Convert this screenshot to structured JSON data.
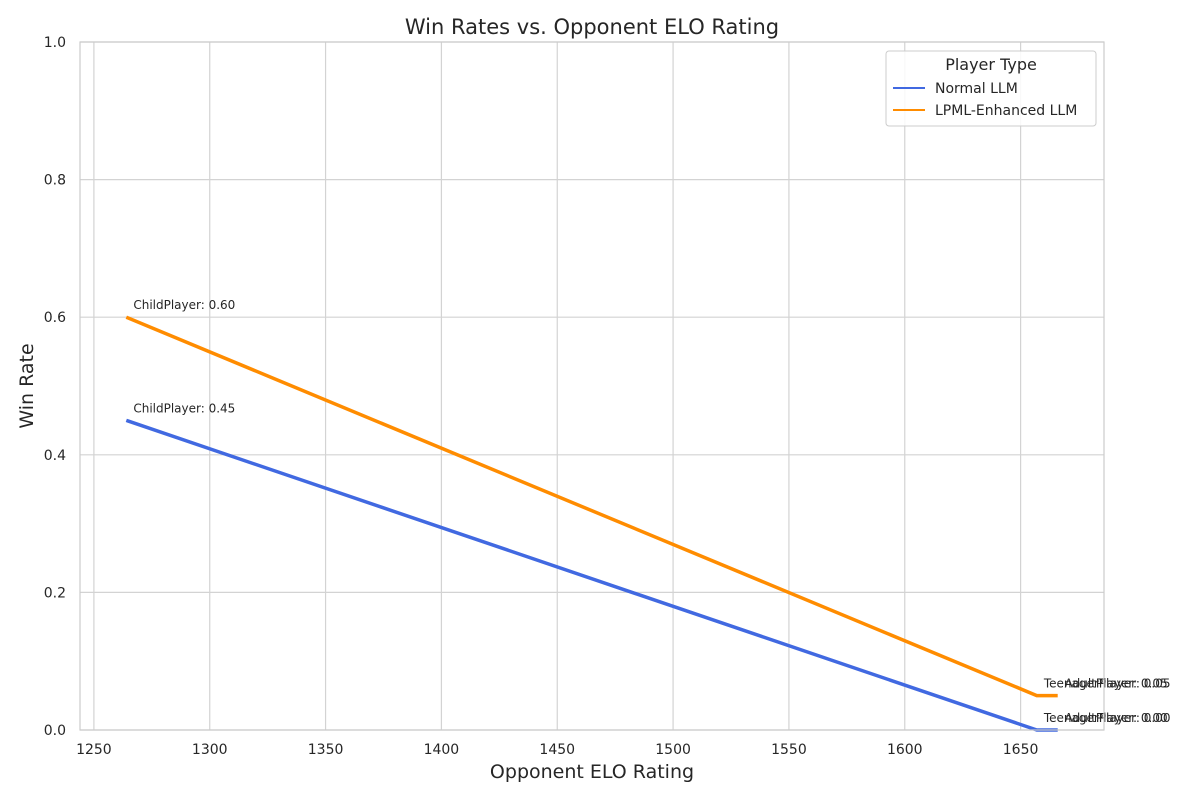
{
  "chart_data": {
    "type": "line",
    "title": "Win Rates vs. Opponent ELO Rating",
    "xlabel": "Opponent ELO Rating",
    "ylabel": "Win Rate",
    "xlim": [
      1244,
      1686
    ],
    "ylim": [
      0,
      1.0
    ],
    "xticks": [
      1250,
      1300,
      1350,
      1400,
      1450,
      1500,
      1550,
      1600,
      1650
    ],
    "yticks": [
      0.0,
      0.2,
      0.4,
      0.6,
      0.8,
      1.0
    ],
    "xtick_labels": [
      "1250",
      "1300",
      "1350",
      "1400",
      "1450",
      "1500",
      "1550",
      "1600",
      "1650"
    ],
    "ytick_labels": [
      "0.0",
      "0.2",
      "0.4",
      "0.6",
      "0.8",
      "1.0"
    ],
    "grid": true,
    "legend": {
      "title": "Player Type",
      "position": "top-right"
    },
    "series": [
      {
        "name": "Normal LLM",
        "color": "#4169e1",
        "x": [
          1264,
          1657,
          1666
        ],
        "y": [
          0.45,
          0.0,
          0.0
        ],
        "labels": [
          "ChildPlayer: 0.45",
          "TeenagerPlayer: 0.00",
          "AdultPlayer: 0.00"
        ]
      },
      {
        "name": "LPML-Enhanced LLM",
        "color": "#ff8c00",
        "x": [
          1264,
          1657,
          1666
        ],
        "y": [
          0.6,
          0.05,
          0.05
        ],
        "labels": [
          "ChildPlayer: 0.60",
          "TeenagerPlayer: 0.05",
          "AdultPlayer: 0.05"
        ]
      }
    ]
  }
}
